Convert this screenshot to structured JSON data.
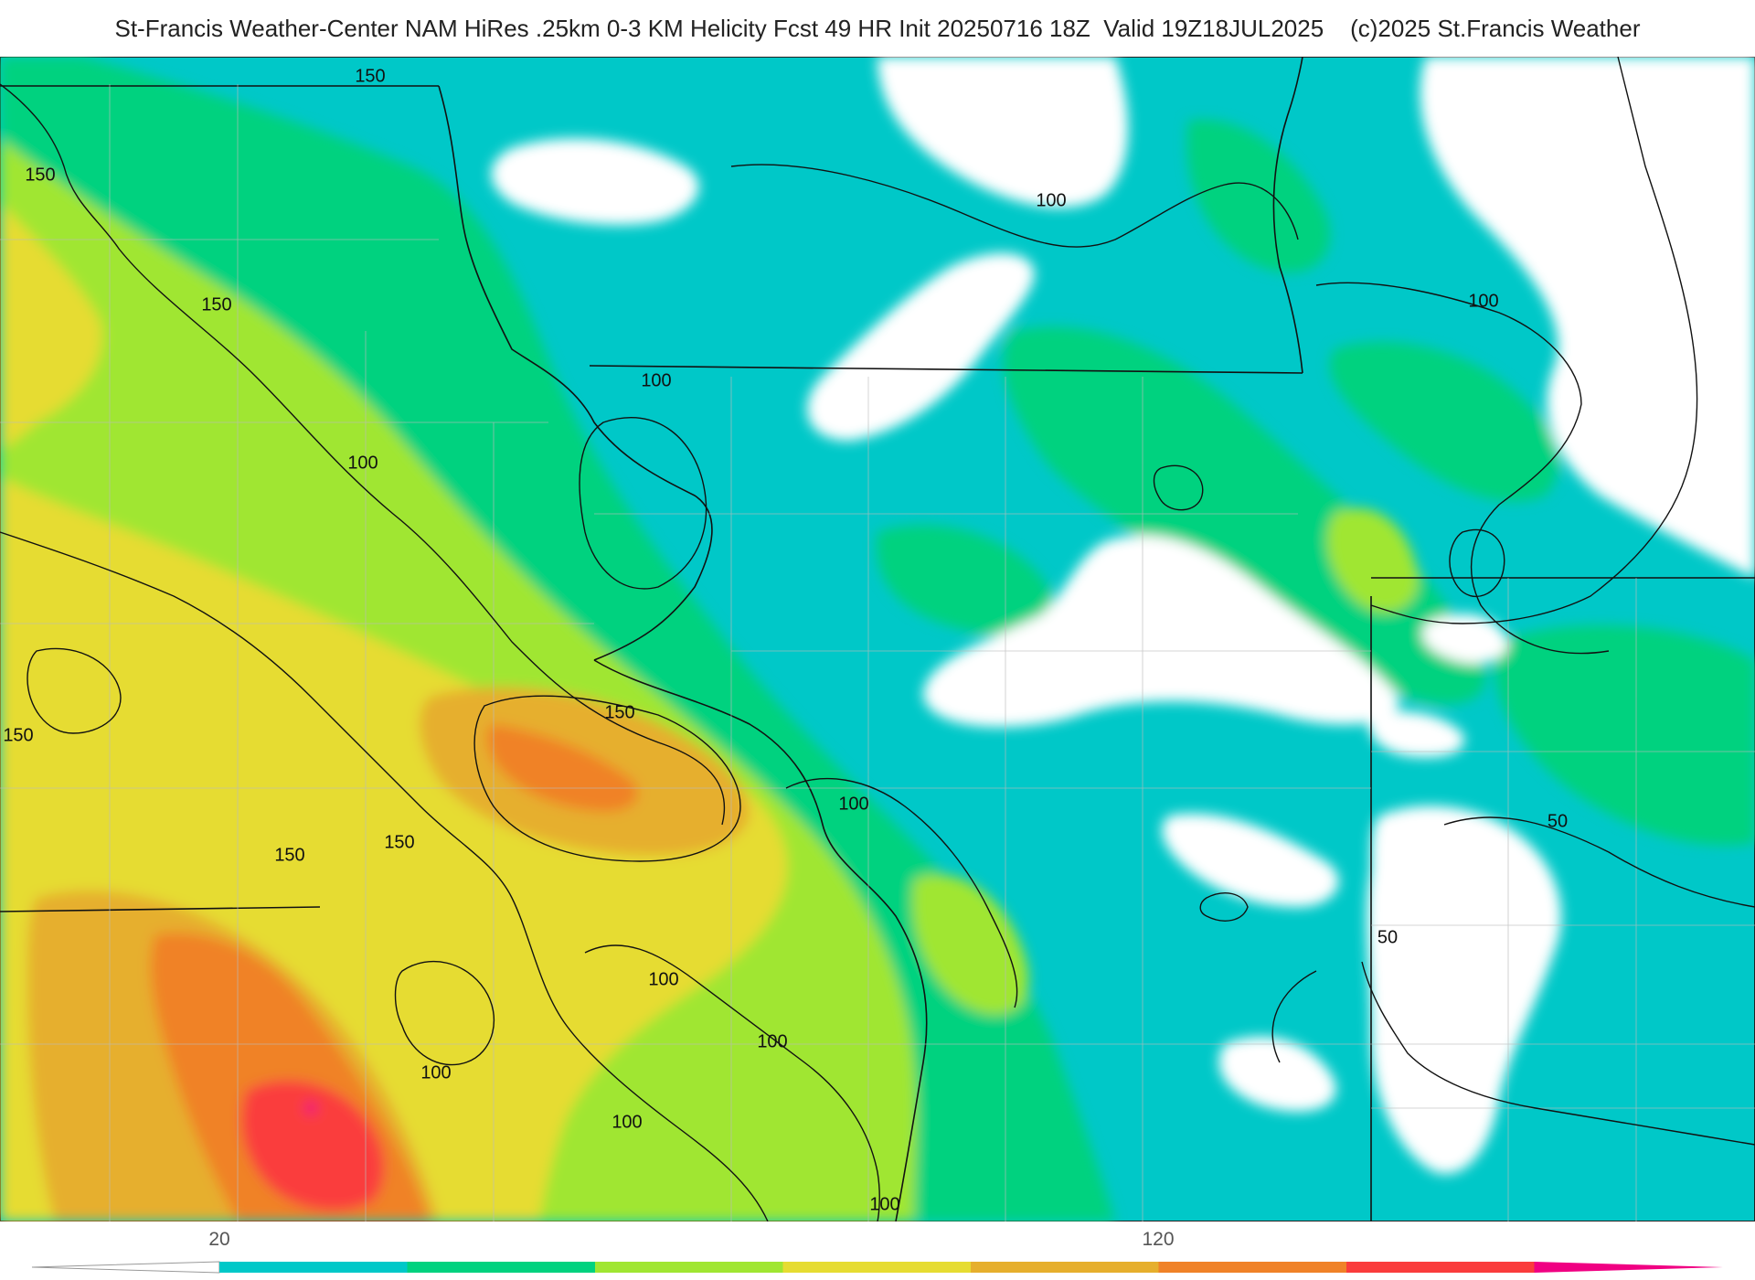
{
  "title": "St-Francis Weather-Center NAM HiRes .25km 0-3 KM Helicity Fcst 49 HR Init 20250716 18Z  Valid 19Z18JUL2025    (c)2025 St.Francis Weather",
  "map": {
    "field": "0-3 KM Helicity",
    "contour_labels": [
      "150",
      "150",
      "150",
      "100",
      "150",
      "100",
      "100",
      "100",
      "150",
      "150",
      "150",
      "100",
      "100",
      "100",
      "100",
      "100",
      "50",
      "50"
    ]
  },
  "colorbar": {
    "tick_labels": [
      "20",
      "120"
    ],
    "colors": [
      "#00c8c8",
      "#00d27f",
      "#a0e632",
      "#e6dc32",
      "#e6af2d",
      "#f08228",
      "#fa3c3c",
      "#f00082"
    ]
  }
}
